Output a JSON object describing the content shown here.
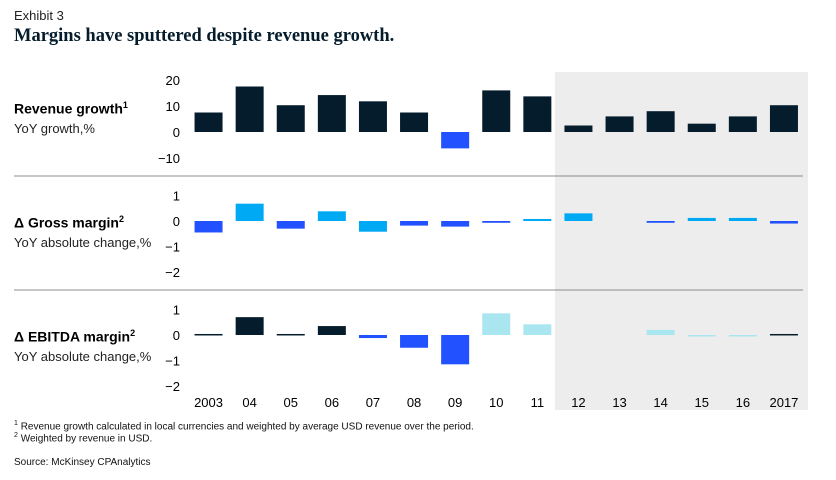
{
  "exhibit": "Exhibit 3",
  "title": "Margins have sputtered despite revenue growth.",
  "chart_data": [
    {
      "type": "bar",
      "title": "Revenue growth",
      "title_note": "1",
      "ylabel": "YoY growth,%",
      "categories": [
        "2003",
        "04",
        "05",
        "06",
        "07",
        "08",
        "09",
        "10",
        "11",
        "12",
        "13",
        "14",
        "15",
        "16",
        "2017"
      ],
      "values": [
        7.5,
        17.5,
        10.3,
        14.2,
        11.8,
        7.5,
        -6.3,
        16.0,
        13.7,
        2.5,
        6.0,
        8.0,
        3.2,
        6.0,
        10.3
      ],
      "colors": [
        "#051c2c",
        "#051c2c",
        "#051c2c",
        "#051c2c",
        "#051c2c",
        "#051c2c",
        "#2251ff",
        "#051c2c",
        "#051c2c",
        "#051c2c",
        "#051c2c",
        "#051c2c",
        "#051c2c",
        "#051c2c",
        "#051c2c"
      ],
      "yticks": [
        20,
        10,
        0,
        -10
      ],
      "ylim": [
        -10,
        20
      ]
    },
    {
      "type": "bar",
      "title": "Δ Gross margin",
      "title_note": "2",
      "ylabel": "YoY absolute change,%",
      "categories": [
        "2003",
        "04",
        "05",
        "06",
        "07",
        "08",
        "09",
        "10",
        "11",
        "12",
        "13",
        "14",
        "15",
        "16",
        "2017"
      ],
      "values": [
        -0.45,
        0.68,
        -0.3,
        0.38,
        -0.42,
        -0.18,
        -0.22,
        -0.07,
        0.08,
        0.3,
        0.0,
        -0.07,
        0.12,
        0.12,
        -0.1
      ],
      "colors": [
        "#2251ff",
        "#00a9f4",
        "#2251ff",
        "#00a9f4",
        "#00a9f4",
        "#2251ff",
        "#2251ff",
        "#2251ff",
        "#00a9f4",
        "#00a9f4",
        "#00a9f4",
        "#2251ff",
        "#00a9f4",
        "#00a9f4",
        "#2251ff"
      ],
      "yticks": [
        1,
        0,
        -1,
        -2
      ],
      "ylim": [
        -2,
        1
      ]
    },
    {
      "type": "bar",
      "title": "Δ EBITDA margin",
      "title_note": "2",
      "ylabel": "YoY absolute change,%",
      "categories": [
        "2003",
        "04",
        "05",
        "06",
        "07",
        "08",
        "09",
        "10",
        "11",
        "12",
        "13",
        "14",
        "15",
        "16",
        "2017"
      ],
      "values": [
        0.04,
        0.7,
        0.04,
        0.35,
        -0.12,
        -0.5,
        -1.15,
        0.85,
        0.42,
        0.0,
        0.0,
        0.2,
        -0.03,
        -0.03,
        0.04
      ],
      "colors": [
        "#051c2c",
        "#051c2c",
        "#051c2c",
        "#051c2c",
        "#2251ff",
        "#2251ff",
        "#2251ff",
        "#aae6f0",
        "#aae6f0",
        "#aae6f0",
        "#aae6f0",
        "#aae6f0",
        "#aae6f0",
        "#aae6f0",
        "#051c2c"
      ],
      "yticks": [
        1,
        0,
        -1,
        -2
      ],
      "ylim": [
        -2,
        1
      ]
    }
  ],
  "shaded_region_start": "12",
  "footnotes": [
    {
      "mark": "1",
      "text": "Revenue growth calculated in local currencies and weighted by average USD revenue over the period."
    },
    {
      "mark": "2",
      "text": "Weighted by revenue in USD."
    }
  ],
  "source": "Source: McKinsey CPAnalytics",
  "colors": {
    "navy": "#051c2c",
    "blue": "#2251ff",
    "cyan": "#00a9f4",
    "lightcyan": "#aae6f0",
    "shade": "#ededed",
    "divider": "#8c8c8c"
  }
}
